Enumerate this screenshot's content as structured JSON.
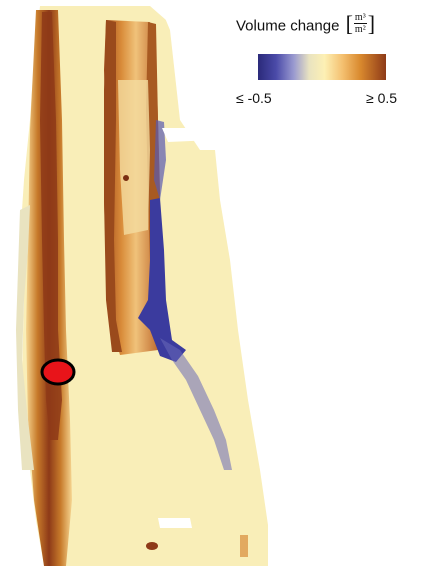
{
  "legend": {
    "title": "Volume change",
    "unit_numerator": "m³",
    "unit_denominator": "m²",
    "min_label": "≤ -0.5",
    "max_label": "≥ 0.5",
    "colormap": [
      "#2b2a7a",
      "#4a4aa8",
      "#9a9ad0",
      "#e9e3c0",
      "#fdf0b4",
      "#f4c070",
      "#d9892e",
      "#8e3a18"
    ]
  },
  "colors": {
    "base": "#f9eeb8",
    "erosion": "#3b3b9e",
    "deposition": "#9a4a1c",
    "marker_fill": "#e8141a",
    "marker_stroke": "#000000"
  }
}
